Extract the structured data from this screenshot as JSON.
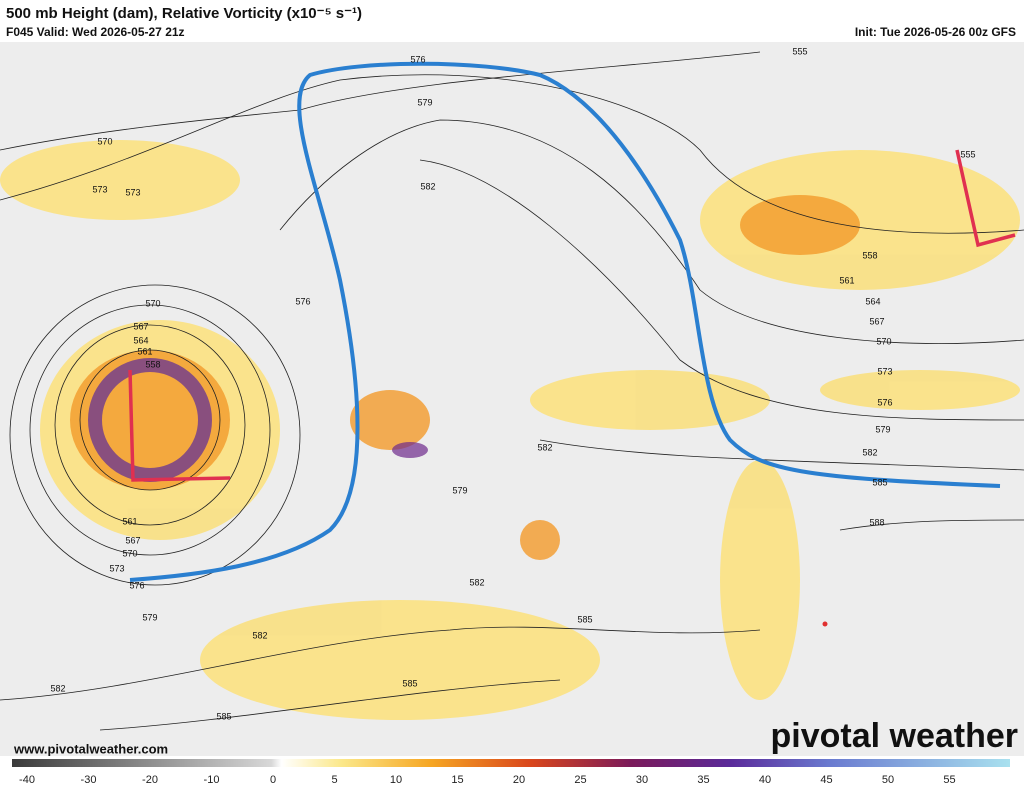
{
  "header": {
    "title": "500 mb Height (dam), Relative Vorticity (x10⁻⁵ s⁻¹)",
    "valid": "F045 Valid: Wed 2026-05-27 21z",
    "init": "Init: Tue 2026-05-26 00z GFS"
  },
  "contour_labels": [
    576,
    555,
    579,
    570,
    573,
    573,
    582,
    555,
    558,
    561,
    564,
    567,
    570,
    573,
    576,
    579,
    582,
    585,
    588,
    570,
    576,
    567,
    564,
    561,
    558,
    582,
    579,
    561,
    567,
    570,
    573,
    576,
    579,
    582,
    582,
    585,
    582,
    585,
    585
  ],
  "website": "www.pivotalweather.com",
  "logo": "pivotal weather",
  "colorbar": {
    "ticks": [
      -40,
      -30,
      -20,
      -10,
      0,
      5,
      10,
      15,
      20,
      25,
      30,
      35,
      40,
      45,
      50,
      55
    ]
  }
}
